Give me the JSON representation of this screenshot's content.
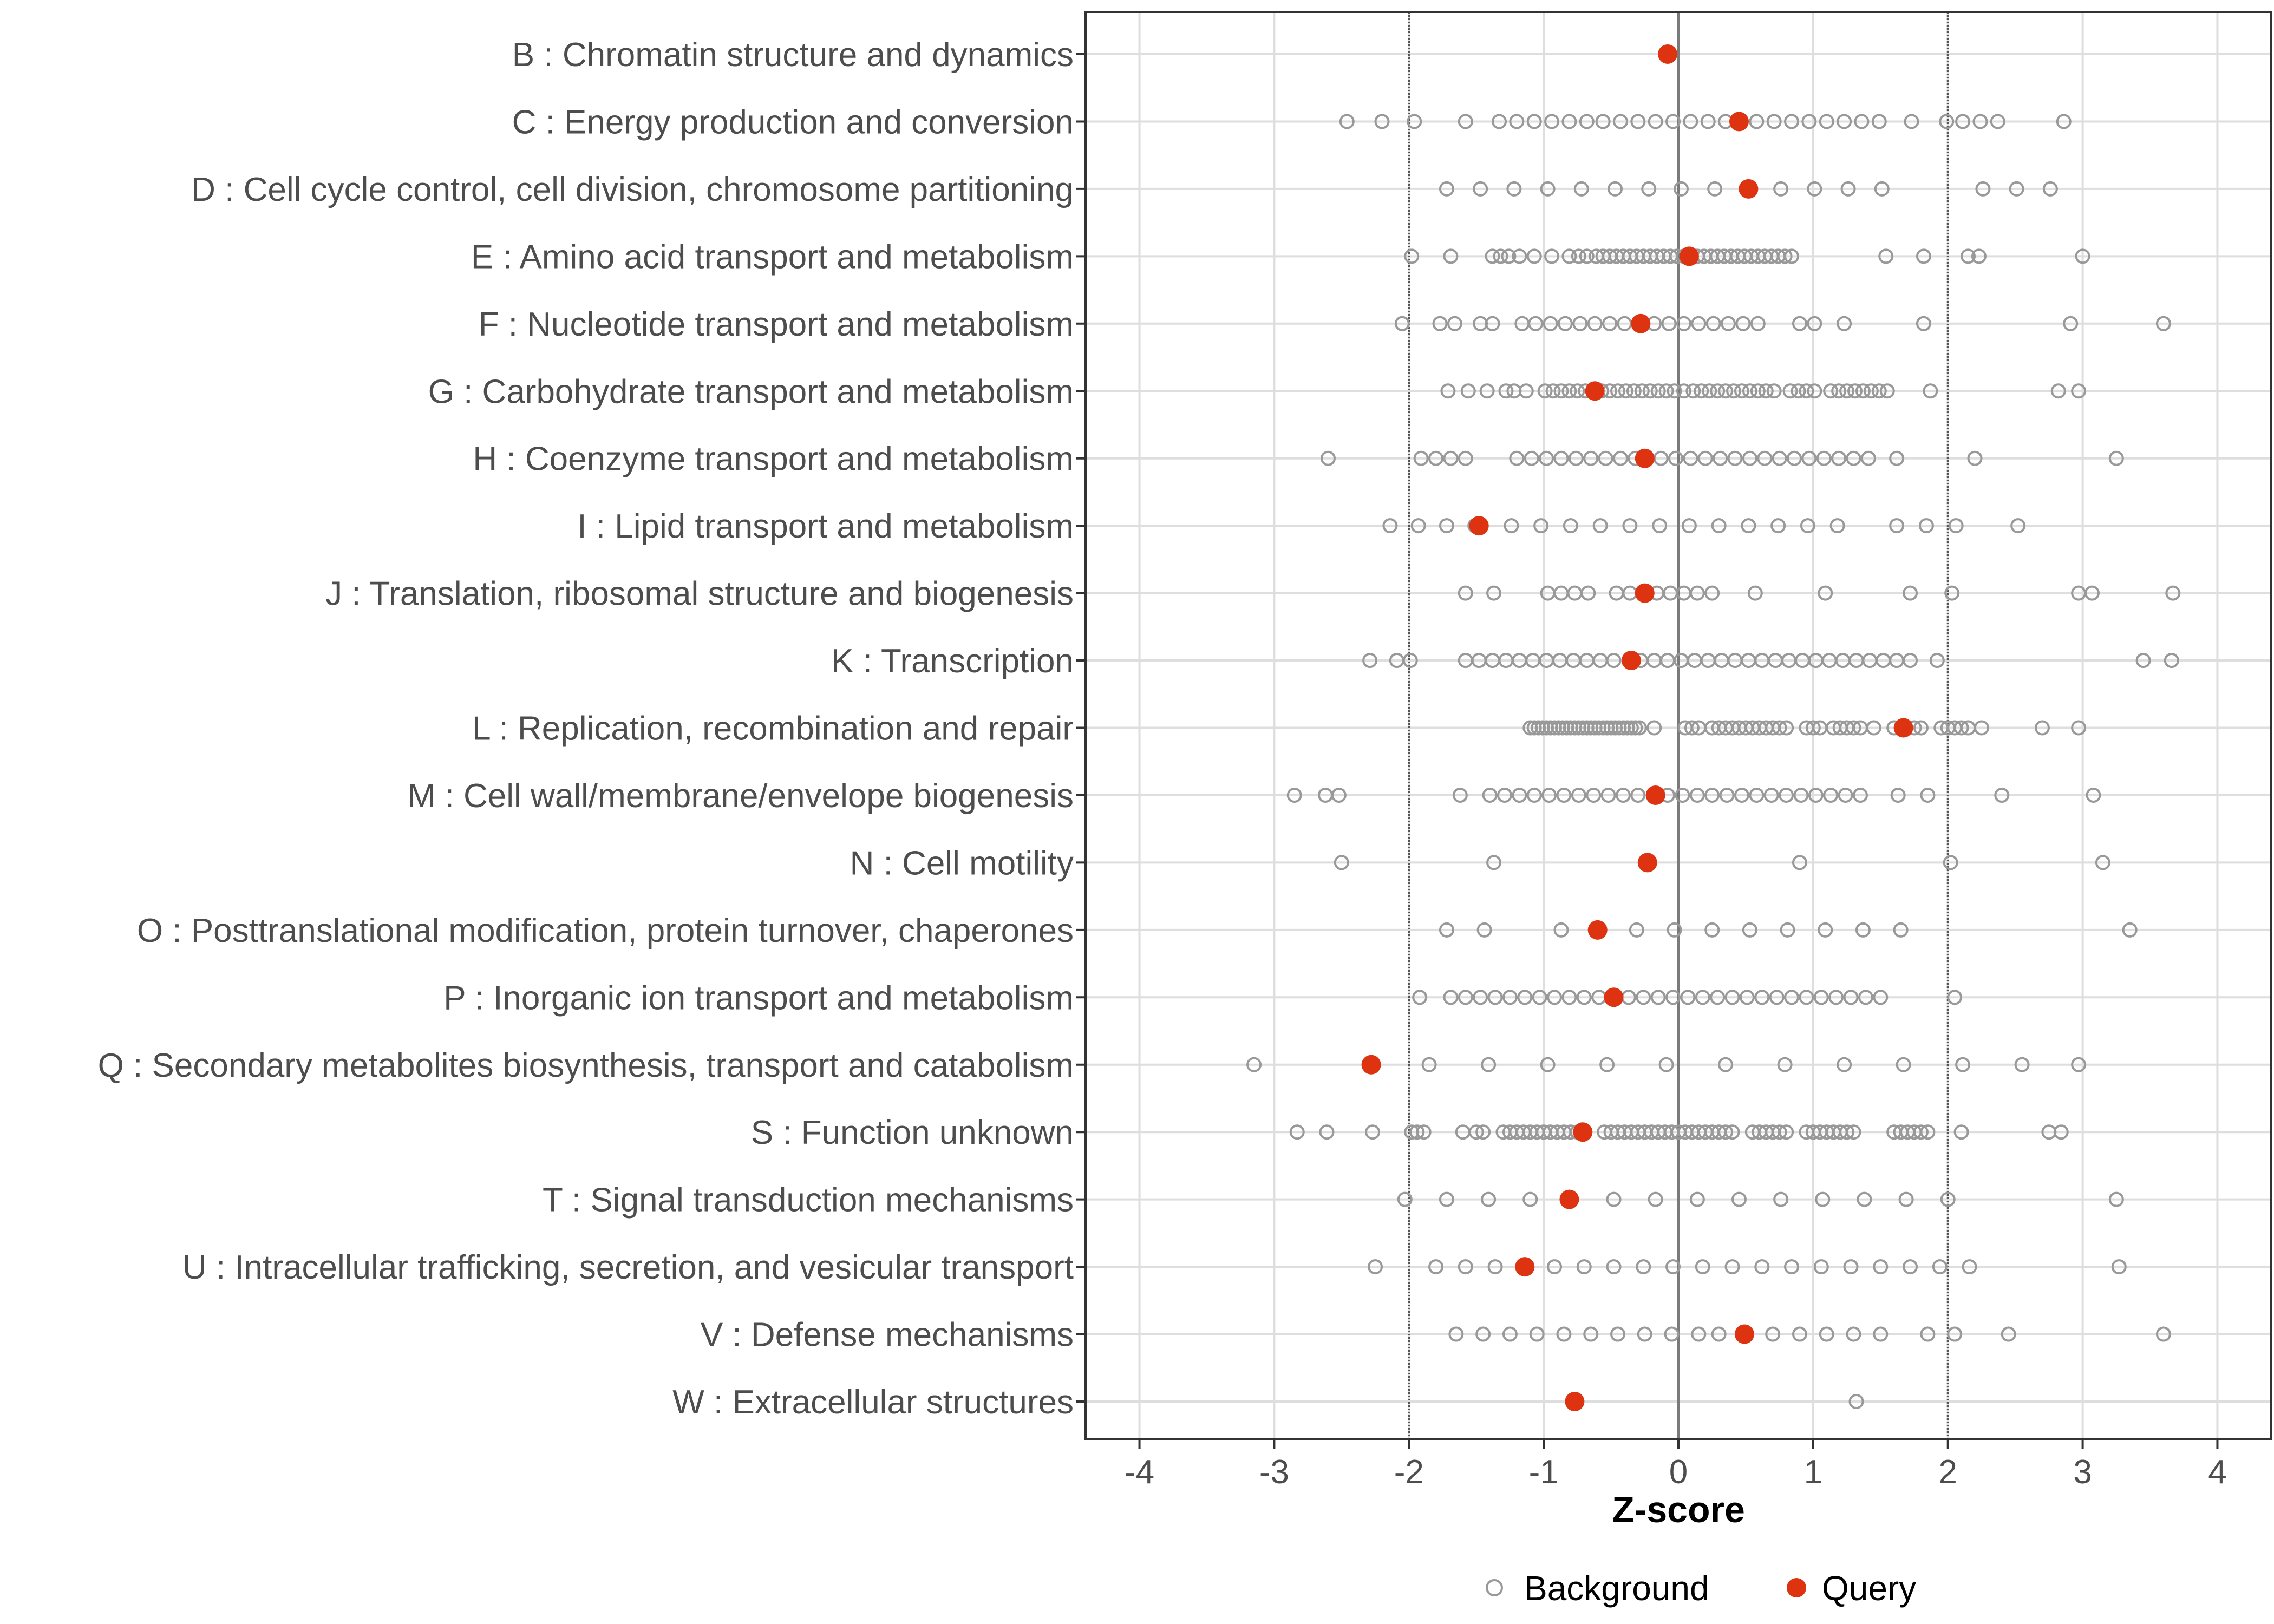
{
  "chart_data": {
    "type": "scatter",
    "title": "",
    "xlabel": "Z-score",
    "ylabel": "",
    "xlim": [
      -4.4,
      4.4
    ],
    "x_ticks": [
      -4,
      -3,
      -2,
      -1,
      0,
      1,
      2,
      3,
      4
    ],
    "x_tick_labels": [
      "-4",
      "-3",
      "-2",
      "-1",
      "0",
      "1",
      "2",
      "3",
      "4"
    ],
    "threshold_lines": [
      -2,
      2
    ],
    "zero_line": 0,
    "grid": true,
    "legend_position": "bottom",
    "colors": {
      "background": "#999999",
      "query": "#dd3311",
      "grid": "#dedede",
      "axis": "#333333"
    },
    "legend": [
      {
        "name": "Background",
        "marker": "open-circle"
      },
      {
        "name": "Query",
        "marker": "filled-circle"
      }
    ],
    "categories": [
      "B : Chromatin structure and dynamics",
      "C : Energy production and conversion",
      "D : Cell cycle control, cell division, chromosome partitioning",
      "E : Amino acid transport and metabolism",
      "F : Nucleotide transport and metabolism",
      "G : Carbohydrate transport and metabolism",
      "H : Coenzyme transport and metabolism",
      "I : Lipid transport and metabolism",
      "J : Translation, ribosomal structure and biogenesis",
      "K : Transcription",
      "L : Replication, recombination and repair",
      "M : Cell wall/membrane/envelope biogenesis",
      "N : Cell motility",
      "O : Posttranslational modification, protein turnover, chaperones",
      "P : Inorganic ion transport and metabolism",
      "Q : Secondary metabolites biosynthesis, transport and catabolism",
      "S : Function unknown",
      "T : Signal transduction mechanisms",
      "U : Intracellular trafficking, secretion, and vesicular transport",
      "V : Defense mechanisms",
      "W : Extracellular structures"
    ],
    "query": [
      -0.08,
      0.45,
      0.52,
      0.08,
      -0.28,
      -0.62,
      -0.25,
      -1.48,
      -0.25,
      -0.35,
      1.67,
      -0.17,
      -0.23,
      -0.6,
      -0.48,
      -2.28,
      -0.71,
      -0.81,
      -1.14,
      0.49,
      -0.77
    ],
    "background": [
      [],
      [
        -2.46,
        -2.2,
        -1.96,
        -1.58,
        -1.33,
        -1.2,
        -1.07,
        -0.94,
        -0.81,
        -0.68,
        -0.56,
        -0.43,
        -0.3,
        -0.17,
        -0.04,
        0.09,
        0.22,
        0.35,
        0.58,
        0.71,
        0.84,
        0.97,
        1.1,
        1.23,
        1.36,
        1.49,
        1.73,
        1.99,
        2.11,
        2.24,
        2.37,
        2.86
      ],
      [
        -1.72,
        -1.47,
        -1.22,
        -0.97,
        -0.72,
        -0.47,
        -0.22,
        0.02,
        0.27,
        0.76,
        1.01,
        1.26,
        1.51,
        2.26,
        2.51,
        2.76
      ],
      [
        -1.98,
        -1.69,
        -1.38,
        -1.32,
        -1.26,
        -1.18,
        -1.07,
        -0.94,
        -0.81,
        -0.74,
        -0.68,
        -0.61,
        -0.56,
        -0.51,
        -0.46,
        -0.41,
        -0.36,
        -0.31,
        -0.26,
        -0.21,
        -0.16,
        -0.11,
        -0.06,
        -0.01,
        0.04,
        0.14,
        0.19,
        0.24,
        0.29,
        0.34,
        0.39,
        0.44,
        0.49,
        0.54,
        0.59,
        0.64,
        0.69,
        0.74,
        0.79,
        0.84,
        1.54,
        1.82,
        2.15,
        2.23,
        3.0
      ],
      [
        -2.05,
        -1.77,
        -1.66,
        -1.47,
        -1.38,
        -1.16,
        -1.06,
        -0.95,
        -0.84,
        -0.73,
        -0.62,
        -0.51,
        -0.4,
        -0.18,
        -0.07,
        0.04,
        0.15,
        0.26,
        0.37,
        0.48,
        0.59,
        0.9,
        1.01,
        1.23,
        1.82,
        2.91,
        3.6
      ],
      [
        -1.71,
        -1.56,
        -1.42,
        -1.28,
        -1.22,
        -1.13,
        -0.99,
        -0.93,
        -0.87,
        -0.81,
        -0.75,
        -0.69,
        -0.57,
        -0.51,
        -0.45,
        -0.39,
        -0.33,
        -0.27,
        -0.21,
        -0.15,
        -0.09,
        -0.03,
        0.04,
        0.11,
        0.17,
        0.23,
        0.29,
        0.35,
        0.41,
        0.47,
        0.53,
        0.59,
        0.65,
        0.71,
        0.83,
        0.89,
        0.95,
        1.01,
        1.13,
        1.19,
        1.25,
        1.31,
        1.37,
        1.43,
        1.49,
        1.55,
        1.87,
        2.82,
        2.97
      ],
      [
        -2.6,
        -1.91,
        -1.8,
        -1.69,
        -1.58,
        -1.2,
        -1.09,
        -0.98,
        -0.87,
        -0.76,
        -0.65,
        -0.54,
        -0.43,
        -0.32,
        -0.13,
        -0.02,
        0.09,
        0.2,
        0.31,
        0.42,
        0.53,
        0.64,
        0.75,
        0.86,
        0.97,
        1.08,
        1.19,
        1.3,
        1.41,
        1.62,
        2.2,
        3.25
      ],
      [
        -2.14,
        -1.93,
        -1.72,
        -1.51,
        -1.24,
        -1.02,
        -0.8,
        -0.58,
        -0.36,
        -0.14,
        0.08,
        0.3,
        0.52,
        0.74,
        0.96,
        1.18,
        1.62,
        1.84,
        2.06,
        2.52
      ],
      [
        -1.58,
        -1.37,
        -0.97,
        -0.87,
        -0.77,
        -0.67,
        -0.46,
        -0.36,
        -0.16,
        -0.06,
        0.04,
        0.14,
        0.25,
        0.57,
        1.09,
        1.72,
        2.03,
        2.97,
        3.07,
        3.67
      ],
      [
        -2.29,
        -2.09,
        -1.99,
        -1.58,
        -1.48,
        -1.38,
        -1.28,
        -1.18,
        -1.08,
        -0.98,
        -0.88,
        -0.78,
        -0.68,
        -0.58,
        -0.48,
        -0.28,
        -0.18,
        -0.08,
        0.02,
        0.12,
        0.22,
        0.32,
        0.42,
        0.52,
        0.62,
        0.72,
        0.82,
        0.92,
        1.02,
        1.12,
        1.22,
        1.32,
        1.42,
        1.52,
        1.62,
        1.72,
        1.92,
        3.45,
        3.66
      ],
      [
        -1.1,
        -1.07,
        -1.04,
        -1.01,
        -0.98,
        -0.95,
        -0.92,
        -0.89,
        -0.86,
        -0.83,
        -0.8,
        -0.77,
        -0.74,
        -0.71,
        -0.68,
        -0.65,
        -0.62,
        -0.59,
        -0.56,
        -0.53,
        -0.5,
        -0.47,
        -0.44,
        -0.41,
        -0.38,
        -0.35,
        -0.32,
        -0.29,
        -0.18,
        0.05,
        0.1,
        0.15,
        0.25,
        0.3,
        0.35,
        0.4,
        0.45,
        0.5,
        0.55,
        0.6,
        0.65,
        0.7,
        0.75,
        0.8,
        0.95,
        1.0,
        1.05,
        1.15,
        1.2,
        1.25,
        1.3,
        1.35,
        1.45,
        1.6,
        1.75,
        1.8,
        1.95,
        2.0,
        2.05,
        2.1,
        2.15,
        2.25,
        2.7,
        2.97
      ],
      [
        -2.85,
        -2.62,
        -2.52,
        -1.62,
        -1.4,
        -1.29,
        -1.18,
        -1.07,
        -0.96,
        -0.85,
        -0.74,
        -0.63,
        -0.52,
        -0.41,
        -0.3,
        -0.08,
        0.03,
        0.14,
        0.25,
        0.36,
        0.47,
        0.58,
        0.69,
        0.8,
        0.91,
        1.02,
        1.13,
        1.24,
        1.35,
        1.63,
        1.85,
        2.4,
        3.08
      ],
      [
        -2.5,
        -1.37,
        0.9,
        2.02,
        3.15
      ],
      [
        -1.72,
        -1.44,
        -0.87,
        -0.31,
        -0.03,
        0.25,
        0.53,
        0.81,
        1.09,
        1.37,
        1.65,
        3.35
      ],
      [
        -1.92,
        -1.69,
        -1.58,
        -1.47,
        -1.36,
        -1.25,
        -1.14,
        -1.03,
        -0.92,
        -0.81,
        -0.7,
        -0.59,
        -0.37,
        -0.26,
        -0.15,
        -0.04,
        0.07,
        0.18,
        0.29,
        0.4,
        0.51,
        0.62,
        0.73,
        0.84,
        0.95,
        1.06,
        1.17,
        1.28,
        1.39,
        1.5,
        2.05
      ],
      [
        -3.15,
        -1.85,
        -1.41,
        -0.97,
        -0.53,
        -0.09,
        0.35,
        0.79,
        1.23,
        1.67,
        2.11,
        2.55,
        2.97
      ],
      [
        -2.83,
        -2.61,
        -2.27,
        -1.98,
        -1.94,
        -1.89,
        -1.6,
        -1.5,
        -1.45,
        -1.3,
        -1.25,
        -1.2,
        -1.15,
        -1.1,
        -1.05,
        -1.0,
        -0.95,
        -0.9,
        -0.85,
        -0.8,
        -0.75,
        -0.55,
        -0.5,
        -0.45,
        -0.4,
        -0.35,
        -0.3,
        -0.25,
        -0.2,
        -0.15,
        -0.1,
        -0.05,
        0.0,
        0.05,
        0.1,
        0.15,
        0.2,
        0.25,
        0.3,
        0.35,
        0.4,
        0.55,
        0.6,
        0.65,
        0.7,
        0.75,
        0.8,
        0.95,
        1.0,
        1.05,
        1.1,
        1.15,
        1.2,
        1.25,
        1.3,
        1.6,
        1.65,
        1.7,
        1.75,
        1.8,
        1.85,
        2.1,
        2.75,
        2.84
      ],
      [
        -2.03,
        -1.72,
        -1.41,
        -1.1,
        -0.48,
        -0.17,
        0.14,
        0.45,
        0.76,
        1.07,
        1.38,
        1.69,
        2.0,
        3.25
      ],
      [
        -2.25,
        -1.8,
        -1.58,
        -1.36,
        -0.92,
        -0.7,
        -0.48,
        -0.26,
        -0.04,
        0.18,
        0.4,
        0.62,
        0.84,
        1.06,
        1.28,
        1.5,
        1.72,
        1.94,
        2.16,
        3.27
      ],
      [
        -1.65,
        -1.45,
        -1.25,
        -1.05,
        -0.85,
        -0.65,
        -0.45,
        -0.25,
        -0.05,
        0.15,
        0.3,
        0.7,
        0.9,
        1.1,
        1.3,
        1.5,
        1.85,
        2.05,
        2.45,
        3.6
      ],
      [
        1.32
      ]
    ]
  }
}
